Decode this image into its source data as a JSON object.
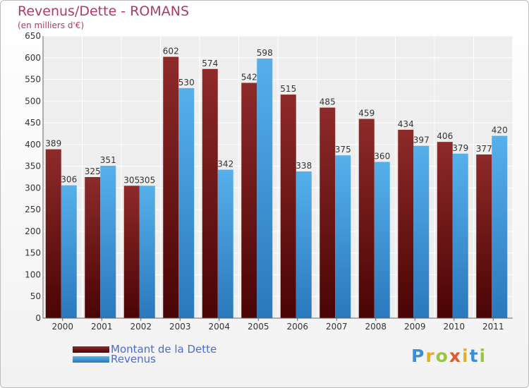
{
  "header": {
    "title": "Revenus/Dette - ROMANS",
    "subtitle": "(en milliers d'€)"
  },
  "legend": {
    "items": [
      {
        "label": "Montant de la Dette",
        "color": "#7a1a1a"
      },
      {
        "label": "Revenus",
        "color": "#4aa3e0"
      }
    ]
  },
  "logo": {
    "text": "Proxiti"
  },
  "chart_data": {
    "type": "bar",
    "title": "Revenus/Dette - ROMANS",
    "subtitle": "(en milliers d'€)",
    "categories": [
      "2000",
      "2001",
      "2002",
      "2003",
      "2004",
      "2005",
      "2006",
      "2007",
      "2008",
      "2009",
      "2010",
      "2011"
    ],
    "series": [
      {
        "name": "Montant de la Dette",
        "color": "#7a1a1a",
        "values": [
          389,
          325,
          305,
          602,
          574,
          542,
          515,
          485,
          459,
          434,
          406,
          377
        ]
      },
      {
        "name": "Revenus",
        "color": "#4aa3e0",
        "values": [
          306,
          351,
          305,
          530,
          342,
          598,
          338,
          375,
          360,
          397,
          379,
          420
        ]
      }
    ],
    "ylim": [
      0,
      650
    ],
    "yticks": [
      0,
      50,
      100,
      150,
      200,
      250,
      300,
      350,
      400,
      450,
      500,
      550,
      600,
      650
    ],
    "grid": true,
    "legend_position": "bottom-left"
  }
}
